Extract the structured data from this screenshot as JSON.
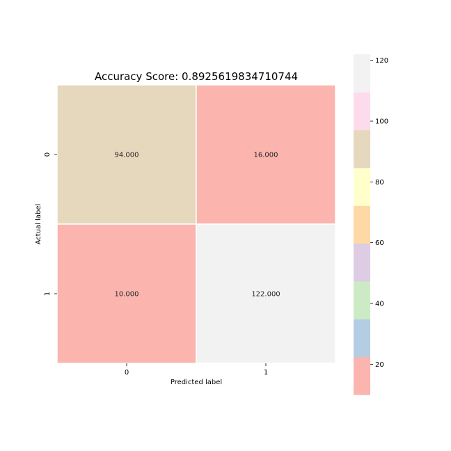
{
  "chart_data": {
    "type": "heatmap",
    "title": "Accuracy Score: 0.8925619834710744",
    "xlabel": "Predicted label",
    "ylabel": "Actual label",
    "x_categories": [
      "0",
      "1"
    ],
    "y_categories": [
      "0",
      "1"
    ],
    "values": [
      [
        94,
        16
      ],
      [
        10,
        122
      ]
    ],
    "cell_labels": [
      [
        "94.000",
        "16.000"
      ],
      [
        "10.000",
        "122.000"
      ]
    ],
    "colormap": "Pastel1",
    "colorbar": {
      "range": [
        10,
        122
      ],
      "ticks": [
        20,
        40,
        60,
        80,
        100,
        120
      ],
      "tick_labels": [
        "20",
        "40",
        "60",
        "80",
        "100",
        "120"
      ],
      "colors": [
        "#fbb4ae",
        "#b3cde3",
        "#ccebc5",
        "#decbe4",
        "#fed9a6",
        "#ffffcc",
        "#e5d8bd",
        "#fddaec",
        "#f2f2f2"
      ]
    }
  }
}
